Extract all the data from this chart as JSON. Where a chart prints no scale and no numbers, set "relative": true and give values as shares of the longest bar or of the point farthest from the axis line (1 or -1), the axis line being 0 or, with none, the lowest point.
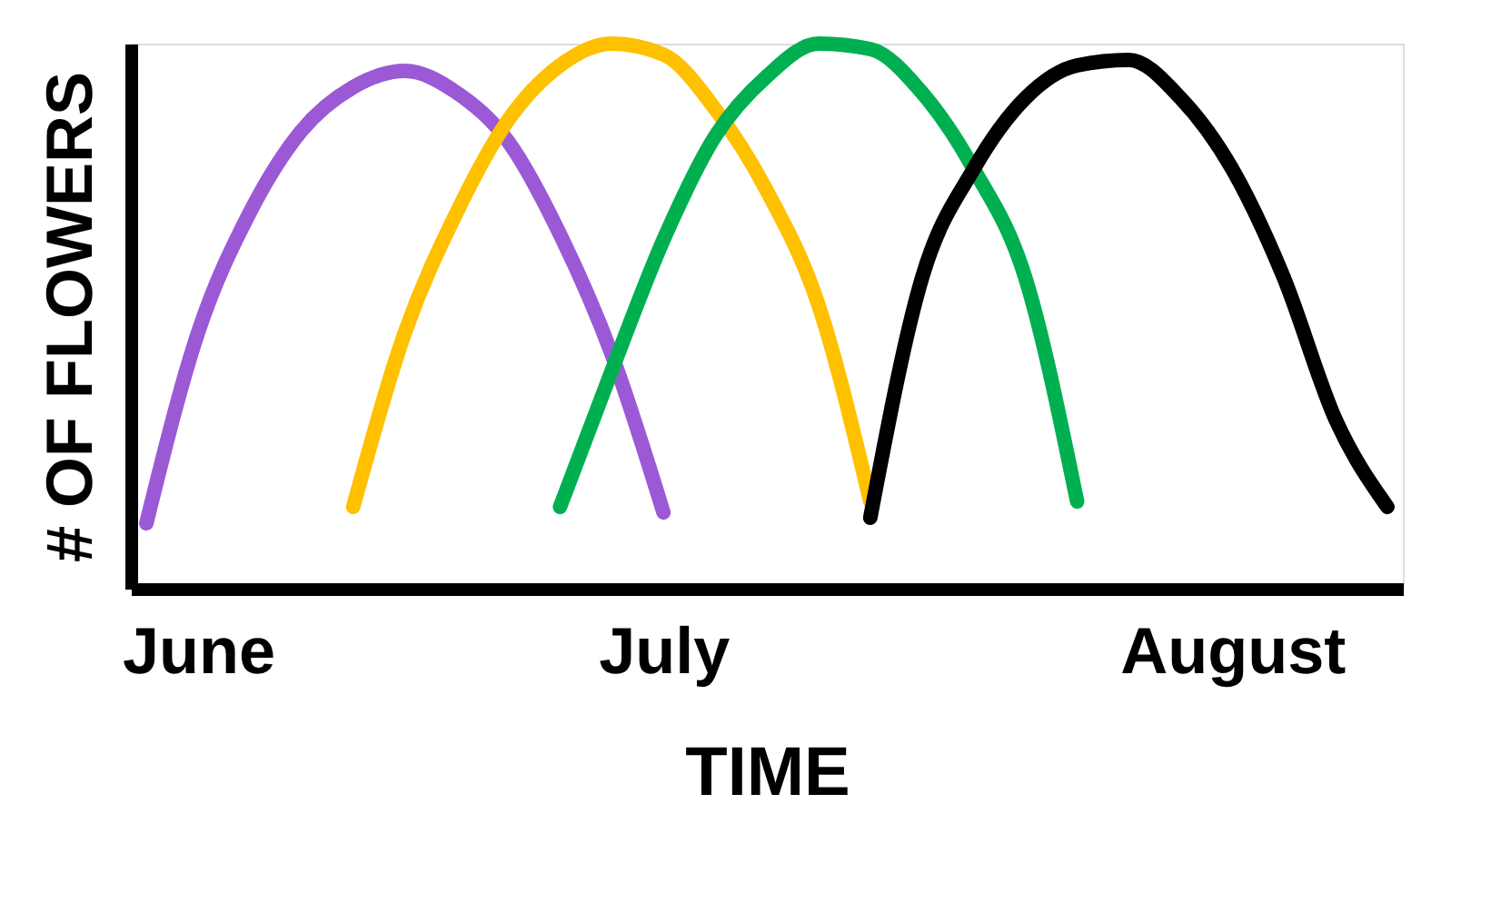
{
  "chart_data": {
    "type": "line",
    "relative": true,
    "xlabel": "TIME",
    "ylabel": "# OF FLOWERS",
    "categories": [
      null,
      "June",
      null,
      null,
      null,
      null,
      null,
      null,
      null,
      null,
      "July",
      null,
      null,
      null,
      null,
      null,
      null,
      null,
      null,
      null,
      null,
      "August",
      null,
      null,
      null
    ],
    "tick_labels": "x",
    "grid": false,
    "legend": false,
    "line_style": "solid",
    "series": [
      {
        "color": "#9b59d6",
        "values": [
          0.12,
          0.47,
          0.69,
          0.84,
          0.92,
          0.95,
          0.91,
          0.82,
          0.65,
          0.43,
          0.14,
          null,
          null,
          null,
          null,
          null,
          null,
          null,
          null,
          null,
          null,
          null,
          null,
          null,
          null
        ]
      },
      {
        "color": "#ffc000",
        "values": [
          null,
          null,
          null,
          null,
          0.15,
          0.47,
          0.69,
          0.86,
          0.96,
          1.0,
          0.98,
          0.88,
          0.73,
          0.52,
          0.16,
          null,
          null,
          null,
          null,
          null,
          null,
          null,
          null,
          null,
          null
        ]
      },
      {
        "color": "#00b050",
        "values": [
          null,
          null,
          null,
          null,
          null,
          null,
          null,
          null,
          0.15,
          0.4,
          0.64,
          0.83,
          0.94,
          1.0,
          0.99,
          0.91,
          0.77,
          0.57,
          0.16,
          null,
          null,
          null,
          null,
          null,
          null
        ]
      },
      {
        "color": "#000000",
        "values": [
          null,
          null,
          null,
          null,
          null,
          null,
          null,
          null,
          null,
          null,
          null,
          null,
          null,
          null,
          0.13,
          0.57,
          0.77,
          0.9,
          0.96,
          0.97,
          0.9,
          0.77,
          0.57,
          0.31,
          0.15
        ]
      }
    ]
  }
}
